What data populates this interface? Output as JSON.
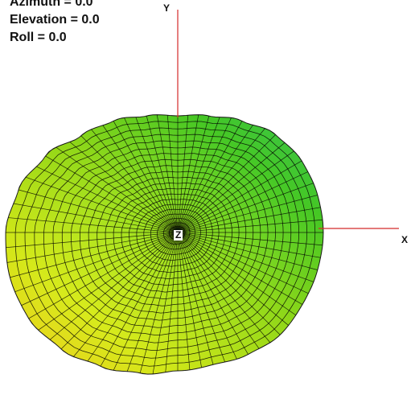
{
  "view": {
    "azimuth_label": "Azimuth = 0.0",
    "elevation_label": "Elevation = 0.0",
    "roll_label": "Roll = 0.0"
  },
  "axes": {
    "x_label": "X",
    "y_label": "Y",
    "z_label": "Z",
    "color": "#d42a2a"
  },
  "surface": {
    "mesh_color": "#000000",
    "colormap": [
      "#ffd21a",
      "#d9ee12",
      "#8fde14",
      "#3ece24",
      "#2ecf62"
    ]
  }
}
